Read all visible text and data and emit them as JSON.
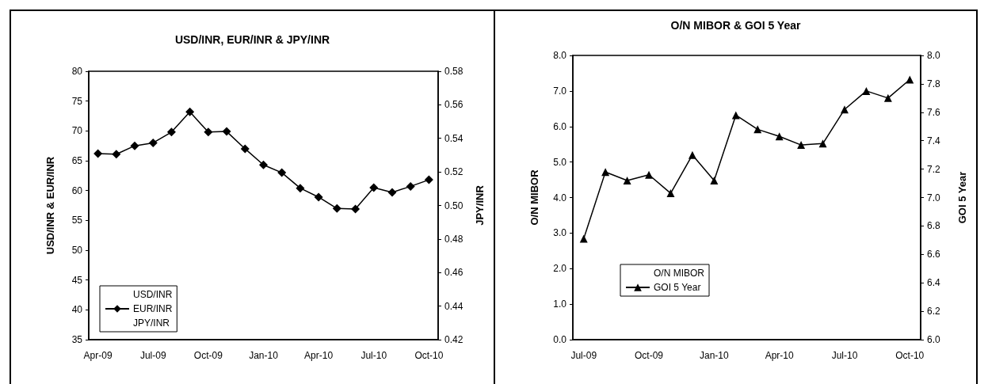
{
  "chart_data": [
    {
      "type": "line",
      "title": "USD/INR, EUR/INR & JPY/INR",
      "ylabel": "USD/INR & EUR/INR",
      "y2label": "JPY/INR",
      "categories": [
        "Apr-09",
        null,
        null,
        "Jul-09",
        null,
        null,
        "Oct-09",
        null,
        null,
        "Jan-10",
        null,
        null,
        "Apr-10",
        null,
        null,
        "Jul-10",
        null,
        null,
        "Oct-10"
      ],
      "series": [
        {
          "name": "USD/INR",
          "values": [
            null,
            null,
            null,
            null,
            null,
            null,
            null,
            null,
            null,
            null,
            null,
            null,
            null,
            null,
            null,
            null,
            null,
            null,
            null
          ]
        },
        {
          "name": "EUR/INR",
          "color": "#000000",
          "values": [
            66.2,
            66.1,
            67.5,
            68.0,
            69.8,
            73.2,
            69.8,
            69.9,
            67.0,
            64.3,
            63.0,
            60.4,
            58.9,
            57.0,
            56.9,
            60.5,
            59.7,
            60.7,
            61.8
          ]
        },
        {
          "name": "JPY/INR",
          "axis": "y2",
          "values": [
            null,
            null,
            null,
            null,
            null,
            null,
            null,
            null,
            null,
            null,
            null,
            null,
            null,
            null,
            null,
            null,
            null,
            null,
            null
          ]
        }
      ],
      "ylim": [
        35,
        80
      ],
      "yticks": [
        35,
        40,
        45,
        50,
        55,
        60,
        65,
        70,
        75,
        80
      ],
      "y2lim": [
        0.42,
        0.58
      ],
      "y2ticks": [
        0.42,
        0.44,
        0.46,
        0.48,
        {
          "value": 0.5,
          "label": "0.50"
        },
        0.52,
        0.54,
        0.56,
        0.58
      ],
      "marker": "diamond",
      "grid": false,
      "legend": "bottom left"
    },
    {
      "type": "line",
      "title": "O/N MIBOR & GOI 5 Year",
      "ylabel": "O/N MIBOR",
      "y2label": "GOI 5 Year",
      "categories": [
        "Jul-09",
        null,
        null,
        "Oct-09",
        null,
        null,
        "Jan-10",
        null,
        null,
        "Apr-10",
        null,
        null,
        "Jul-10",
        null,
        null,
        "Oct-10"
      ],
      "series": [
        {
          "name": "O/N MIBOR",
          "values": [
            null,
            null,
            null,
            null,
            null,
            null,
            null,
            null,
            null,
            null,
            null,
            null,
            null,
            null,
            null,
            null
          ]
        },
        {
          "name": "GOI 5 Year",
          "color": "#000000",
          "axis": "y2",
          "values": [
            6.71,
            7.18,
            7.12,
            7.16,
            7.03,
            7.3,
            7.12,
            7.58,
            7.48,
            7.43,
            7.37,
            7.38,
            7.62,
            7.75,
            7.7,
            7.83
          ]
        }
      ],
      "ylim": [
        0,
        8
      ],
      "yticks": [
        {
          "value": 0,
          "label": "0.0"
        },
        {
          "value": 1,
          "label": "1.0"
        },
        {
          "value": 2,
          "label": "2.0"
        },
        {
          "value": 3,
          "label": "3.0"
        },
        {
          "value": 4,
          "label": "4.0"
        },
        {
          "value": 5,
          "label": "5.0"
        },
        {
          "value": 6,
          "label": "6.0"
        },
        {
          "value": 7,
          "label": "7.0"
        },
        {
          "value": 8,
          "label": "8.0"
        }
      ],
      "y2lim": [
        6,
        8
      ],
      "y2ticks": [
        {
          "value": 6,
          "label": "6.0"
        },
        6.2,
        6.4,
        6.6,
        6.8,
        {
          "value": 7,
          "label": "7.0"
        },
        7.2,
        7.4,
        7.6,
        7.8,
        {
          "value": 8,
          "label": "8.0"
        }
      ],
      "marker": "triangle",
      "grid": false,
      "legend": "bottom left"
    }
  ]
}
